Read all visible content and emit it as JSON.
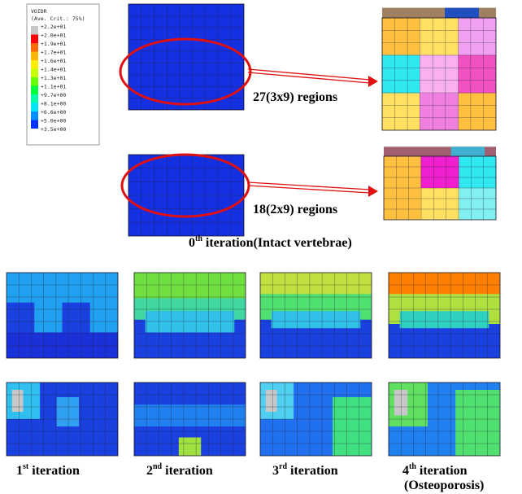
{
  "legend": {
    "title": "VOIDR",
    "subtitle": "(Ave. Crit.: 75%)",
    "labels": [
      "+2.2e+01",
      "+2.0e+01",
      "+1.9e+01",
      "+1.7e+01",
      "+1.6e+01",
      "+1.4e+01",
      "+1.3e+01",
      "+1.1e+01",
      "+9.7e+00",
      "+8.1e+00",
      "+6.6e+00",
      "+5.0e+00",
      "+3.5e+00"
    ]
  },
  "annotations": [
    "27(3x9) regions",
    "18(2x9) regions"
  ],
  "caption_top": {
    "number": "0",
    "suffix": "th",
    "text": " iteration(Intact vertebrae)"
  },
  "captions_bottom": [
    {
      "number": "1",
      "suffix": "st",
      "text": " iteration"
    },
    {
      "number": "2",
      "suffix": "nd",
      "text": " iteration"
    },
    {
      "number": "3",
      "suffix": "rd",
      "text": " iteration"
    },
    {
      "number": "4",
      "suffix": "th",
      "text": " iteration",
      "note": "(Osteoporosis)"
    }
  ]
}
